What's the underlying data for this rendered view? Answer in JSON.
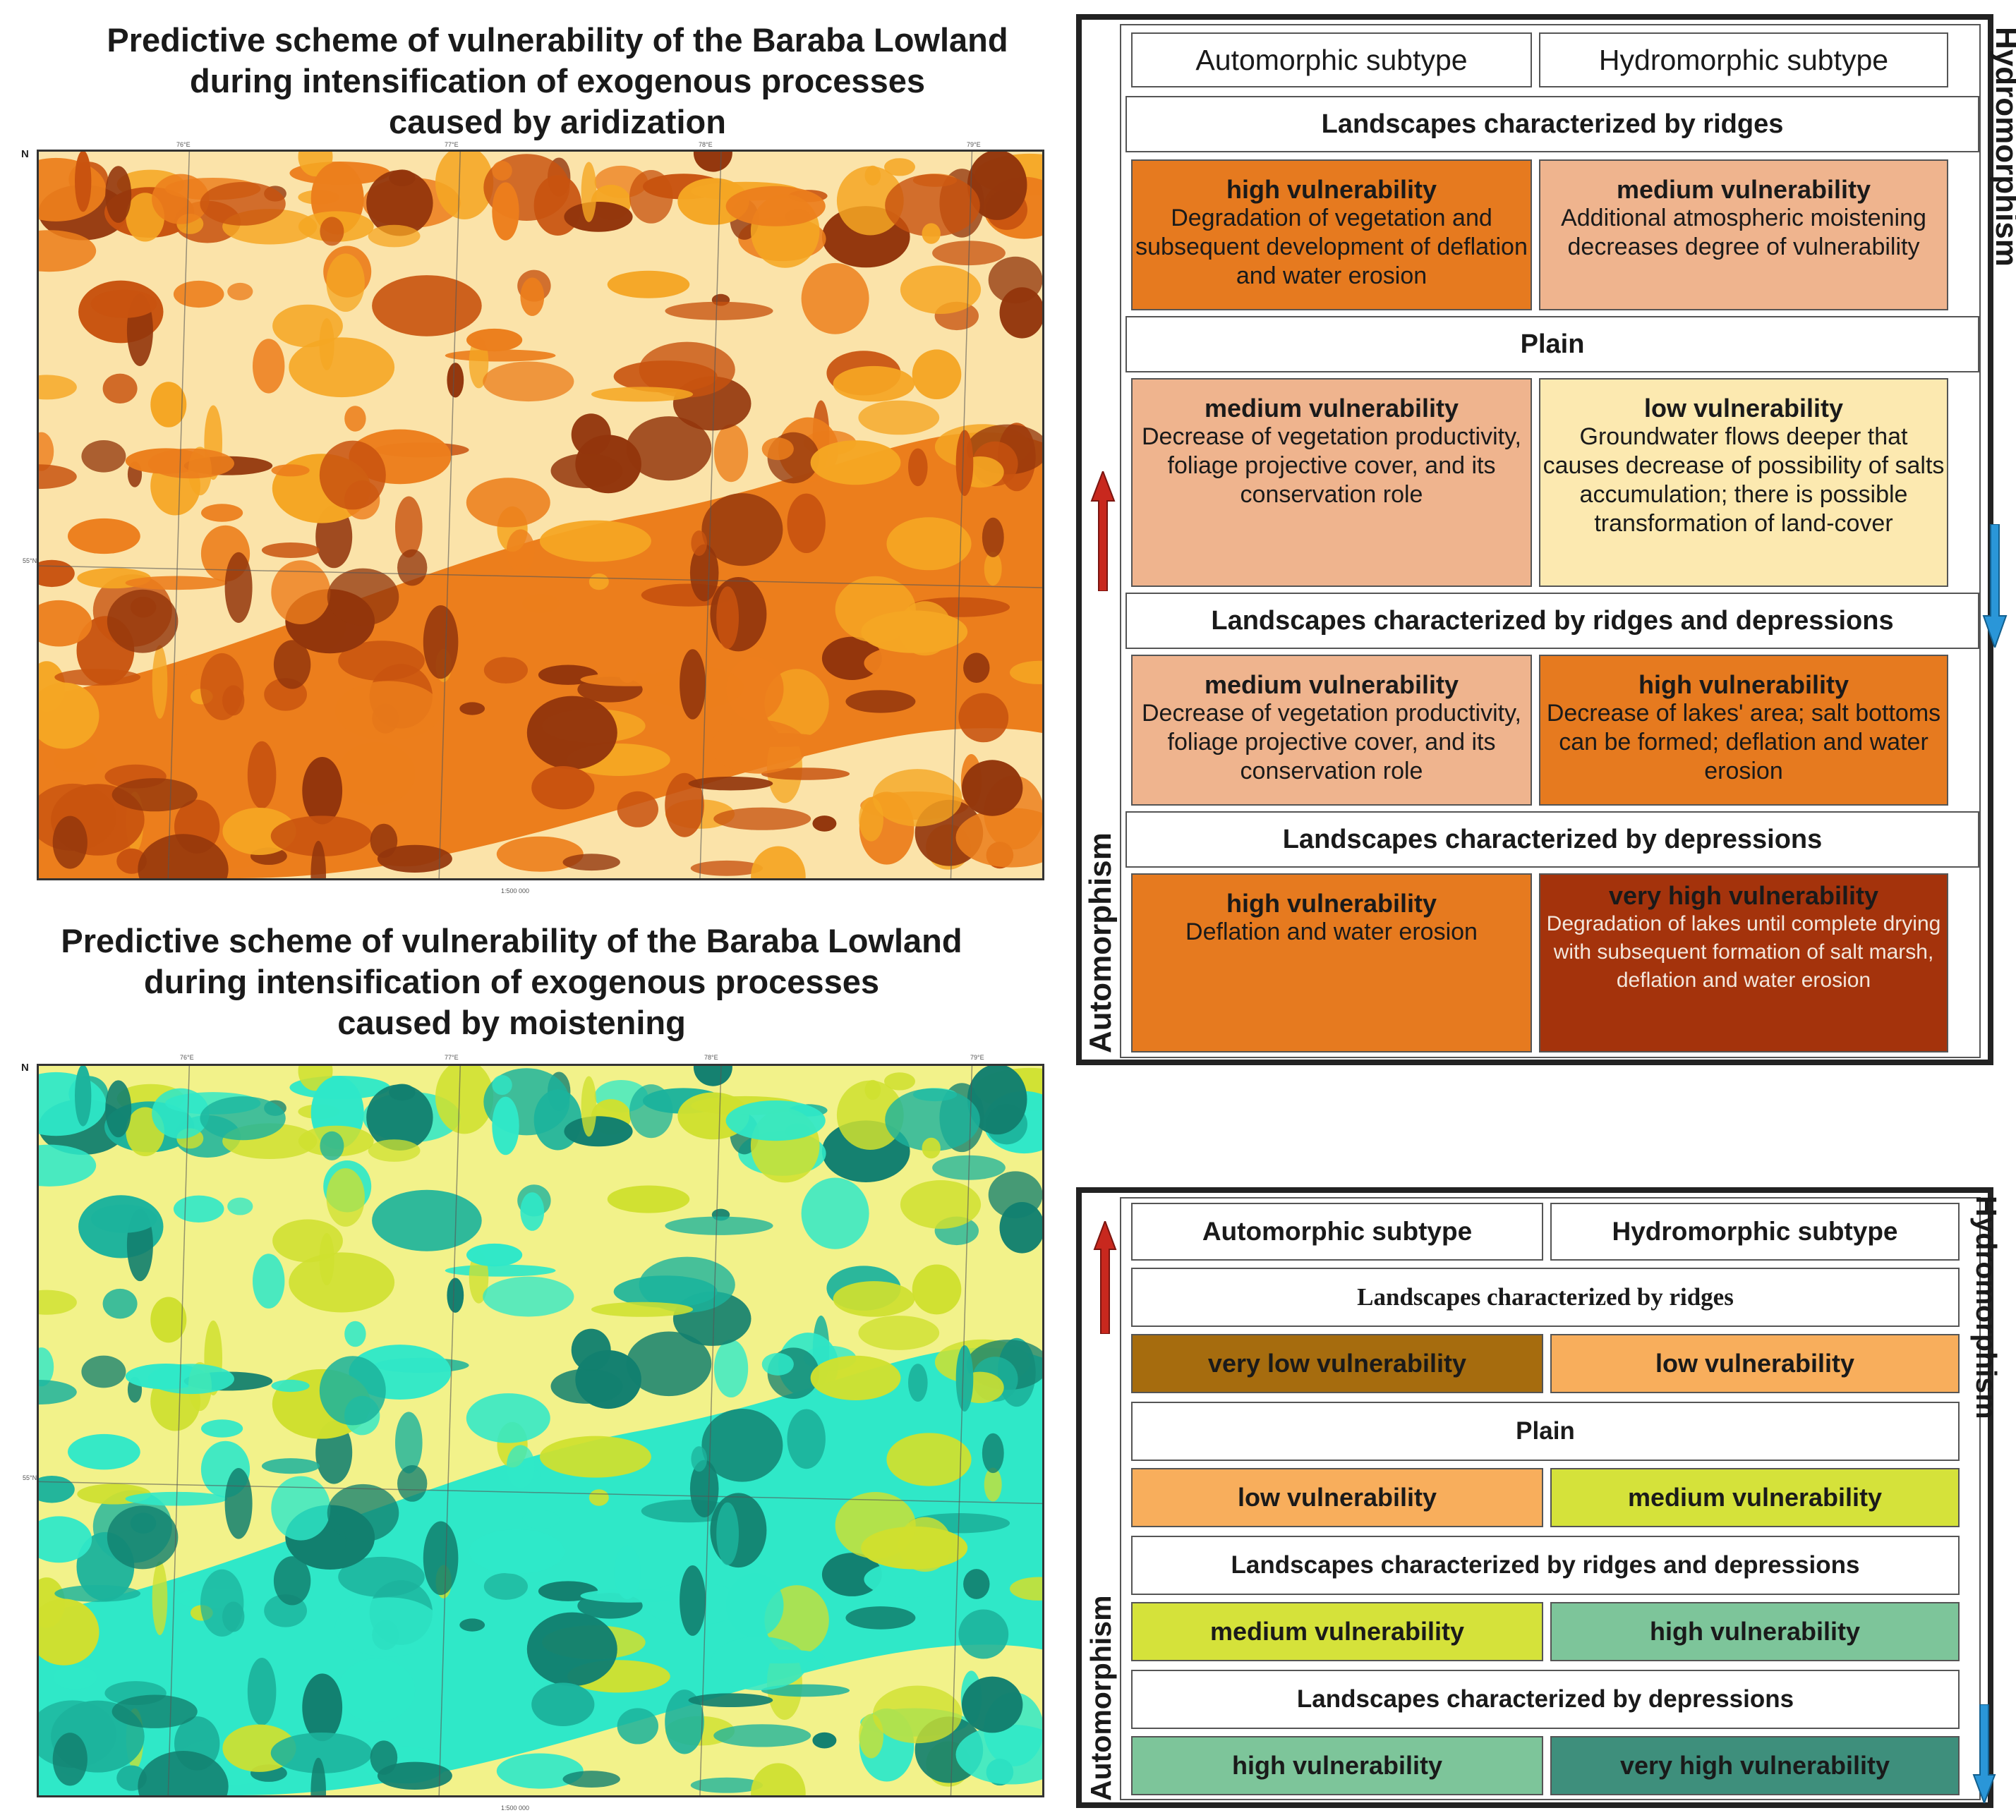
{
  "top": {
    "title": [
      "Predictive scheme of vulnerability of the Baraba Lowland",
      "during intensification of exogenous processes",
      "caused by aridization"
    ],
    "north": "N",
    "lon_labels": [
      "76°E",
      "77°E",
      "78°E",
      "79°E"
    ],
    "lat_label": "55°N",
    "scale": "1:500 000"
  },
  "bottom": {
    "title": [
      "Predictive scheme of vulnerability of the Baraba Lowland",
      "during intensification of exogenous processes",
      "caused by moistening"
    ],
    "north": "N",
    "lon_labels": [
      "76°E",
      "77°E",
      "78°E",
      "79°E"
    ],
    "lat_label": "55°N",
    "scale": "1:500 000"
  },
  "legend1": {
    "automorphic": "Automorphic subtype",
    "hydromorphic": "Hydromorphic subtype",
    "axis_top": "Hydromorphism",
    "axis_bottom": "Automorphism",
    "rows": [
      {
        "label": "Landscapes characterized by ridges",
        "left": {
          "level": "high vulnerability",
          "text": "Degradation of vegetation and subsequent development of deflation and water erosion",
          "color": "#e67a1f"
        },
        "right": {
          "level": "medium vulnerability",
          "text": "Additional atmospheric moistening decreases degree of vulnerability",
          "color": "#efb48e"
        }
      },
      {
        "label": "Plain",
        "left": {
          "level": "medium vulnerability",
          "text": "Decrease of vegetation productivity, foliage projective cover, and its conservation role",
          "color": "#efb48e"
        },
        "right": {
          "level": "low vulnerability",
          "text": "Groundwater flows deeper that causes decrease of possibility of salts accumulation; there is possible transformation of land-cover",
          "color": "#fce9b0"
        }
      },
      {
        "label": "Landscapes characterized by ridges and depressions",
        "left": {
          "level": "medium vulnerability",
          "text": "Decrease of vegetation productivity, foliage projective cover, and its conservation role",
          "color": "#efb48e"
        },
        "right": {
          "level": "high vulnerability",
          "text": "Decrease of lakes' area; salt bottoms can be formed; deflation and water erosion",
          "color": "#e67a1f"
        }
      },
      {
        "label": "Landscapes characterized by depressions",
        "left": {
          "level": "high vulnerability",
          "text": "Deflation and water erosion",
          "color": "#e67a1f"
        },
        "right": {
          "level": "very high vulnerability",
          "text": "Degradation of lakes until complete drying with subsequent formation of salt marsh, deflation and water erosion",
          "color": "#a4330c"
        }
      }
    ]
  },
  "legend2": {
    "automorphic": "Automorphic subtype",
    "hydromorphic": "Hydromorphic subtype",
    "axis_top": "Hydromorphism",
    "axis_bottom": "Automorphism",
    "rows": [
      {
        "label": "Landscapes characterized by ridges",
        "left": {
          "level": "very low vulnerability",
          "color": "#a66c0e"
        },
        "right": {
          "level": "low vulnerability",
          "color": "#f8ae5c"
        }
      },
      {
        "label": "Plain",
        "left": {
          "level": "low vulnerability",
          "color": "#f8ae5c"
        },
        "right": {
          "level": "medium vulnerability",
          "color": "#d5e23a"
        }
      },
      {
        "label": "Landscapes characterized by ridges and depressions",
        "left": {
          "level": "medium vulnerability",
          "color": "#d5e23a"
        },
        "right": {
          "level": "high vulnerability",
          "color": "#7dc59a"
        }
      },
      {
        "label": "Landscapes characterized by depressions",
        "left": {
          "level": "high vulnerability",
          "color": "#7dc59a"
        },
        "right": {
          "level": "very high vulnerability",
          "color": "#3e8f7c"
        }
      }
    ]
  },
  "colors": {
    "arid": [
      "#fbe3a9",
      "#f5a623",
      "#ec7e1c",
      "#c8530f",
      "#93360c"
    ],
    "moist": [
      "#f2f28a",
      "#cfe02f",
      "#2fe8c8",
      "#1cb39c",
      "#12806f"
    ]
  }
}
